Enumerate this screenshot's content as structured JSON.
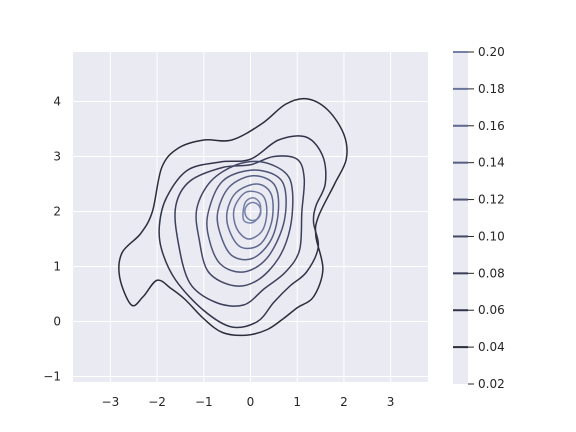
{
  "chart_data": {
    "type": "contour",
    "title": "",
    "xlabel": "",
    "ylabel": "",
    "xlim": [
      -3.8,
      3.8
    ],
    "ylim": [
      -1.1,
      4.9
    ],
    "xticks": [
      -3,
      -2,
      -1,
      0,
      1,
      2,
      3
    ],
    "yticks": [
      -1,
      0,
      1,
      2,
      3,
      4
    ],
    "grid": true,
    "background": "#eaeaf2",
    "peak": {
      "x": 0.05,
      "y": 2.0
    },
    "levels": [
      0.02,
      0.04,
      0.06,
      0.08,
      0.1,
      0.12,
      0.14,
      0.16,
      0.18,
      0.2
    ],
    "colorbar": {
      "ticks": [
        "0.02",
        "0.04",
        "0.06",
        "0.08",
        "0.10",
        "0.12",
        "0.14",
        "0.16",
        "0.18",
        "0.20"
      ],
      "colors": [
        "#f0f0f5",
        "#2b2d3a",
        "#32354a",
        "#3a3e58",
        "#434866",
        "#4d5374",
        "#565e82",
        "#60698f",
        "#6a749b",
        "#7580a6"
      ]
    },
    "contours": [
      {
        "level": 0.02,
        "color": "#2b2d3a",
        "points": [
          [
            -2.8,
            0.8
          ],
          [
            -2.55,
            0.3
          ],
          [
            -2.3,
            0.45
          ],
          [
            -2.0,
            0.75
          ],
          [
            -1.7,
            0.6
          ],
          [
            -1.4,
            0.4
          ],
          [
            -1.0,
            0.05
          ],
          [
            -0.6,
            -0.2
          ],
          [
            -0.1,
            -0.25
          ],
          [
            0.35,
            -0.15
          ],
          [
            0.7,
            0.05
          ],
          [
            1.0,
            0.25
          ],
          [
            1.35,
            0.45
          ],
          [
            1.55,
            0.95
          ],
          [
            1.4,
            1.55
          ],
          [
            1.45,
            1.9
          ],
          [
            1.8,
            2.5
          ],
          [
            2.05,
            2.95
          ],
          [
            2.0,
            3.4
          ],
          [
            1.65,
            3.85
          ],
          [
            1.2,
            4.05
          ],
          [
            0.75,
            3.95
          ],
          [
            0.25,
            3.6
          ],
          [
            -0.4,
            3.3
          ],
          [
            -1.0,
            3.3
          ],
          [
            -1.55,
            3.15
          ],
          [
            -1.9,
            2.8
          ],
          [
            -2.1,
            2.0
          ],
          [
            -2.35,
            1.6
          ],
          [
            -2.75,
            1.25
          ]
        ]
      },
      {
        "level": 0.04,
        "color": "#32354a",
        "points": [
          [
            -1.9,
            1.3
          ],
          [
            -1.6,
            0.75
          ],
          [
            -1.0,
            0.2
          ],
          [
            -0.4,
            -0.1
          ],
          [
            0.15,
            0.0
          ],
          [
            0.5,
            0.35
          ],
          [
            0.85,
            0.65
          ],
          [
            1.2,
            0.9
          ],
          [
            1.45,
            1.35
          ],
          [
            1.35,
            1.8
          ],
          [
            1.4,
            2.1
          ],
          [
            1.6,
            2.5
          ],
          [
            1.55,
            3.0
          ],
          [
            1.2,
            3.35
          ],
          [
            0.6,
            3.3
          ],
          [
            0.0,
            2.95
          ],
          [
            -0.65,
            2.9
          ],
          [
            -1.35,
            2.75
          ],
          [
            -1.8,
            2.25
          ],
          [
            -1.95,
            1.75
          ]
        ]
      },
      {
        "level": 0.06,
        "color": "#3a3e58",
        "points": [
          [
            -1.55,
            1.45
          ],
          [
            -1.3,
            0.7
          ],
          [
            -0.75,
            0.35
          ],
          [
            -0.15,
            0.3
          ],
          [
            0.3,
            0.6
          ],
          [
            0.75,
            0.9
          ],
          [
            1.05,
            1.3
          ],
          [
            1.1,
            2.0
          ],
          [
            1.15,
            2.6
          ],
          [
            1.0,
            2.95
          ],
          [
            0.5,
            3.0
          ],
          [
            0.0,
            2.85
          ],
          [
            -0.6,
            2.8
          ],
          [
            -1.3,
            2.55
          ],
          [
            -1.6,
            2.1
          ]
        ]
      },
      {
        "level": 0.08,
        "color": "#434866",
        "points": [
          [
            -1.1,
            1.5
          ],
          [
            -0.9,
            0.9
          ],
          [
            -0.35,
            0.65
          ],
          [
            0.15,
            0.75
          ],
          [
            0.6,
            1.15
          ],
          [
            0.85,
            1.7
          ],
          [
            0.9,
            2.35
          ],
          [
            0.75,
            2.7
          ],
          [
            0.25,
            2.9
          ],
          [
            -0.3,
            2.85
          ],
          [
            -0.85,
            2.55
          ],
          [
            -1.15,
            2.05
          ]
        ]
      },
      {
        "level": 0.1,
        "color": "#4d5374",
        "points": [
          [
            -0.9,
            1.55
          ],
          [
            -0.65,
            1.05
          ],
          [
            -0.15,
            0.9
          ],
          [
            0.35,
            1.15
          ],
          [
            0.7,
            1.75
          ],
          [
            0.75,
            2.35
          ],
          [
            0.55,
            2.65
          ],
          [
            0.0,
            2.75
          ],
          [
            -0.6,
            2.55
          ],
          [
            -0.9,
            2.0
          ]
        ]
      },
      {
        "level": 0.12,
        "color": "#565e82",
        "points": [
          [
            -0.65,
            1.6
          ],
          [
            -0.4,
            1.2
          ],
          [
            0.05,
            1.15
          ],
          [
            0.45,
            1.5
          ],
          [
            0.6,
            2.05
          ],
          [
            0.5,
            2.5
          ],
          [
            0.05,
            2.65
          ],
          [
            -0.45,
            2.45
          ],
          [
            -0.7,
            2.0
          ]
        ]
      },
      {
        "level": 0.14,
        "color": "#60698f",
        "points": [
          [
            -0.45,
            1.65
          ],
          [
            -0.2,
            1.35
          ],
          [
            0.2,
            1.4
          ],
          [
            0.45,
            1.8
          ],
          [
            0.45,
            2.3
          ],
          [
            0.15,
            2.5
          ],
          [
            -0.3,
            2.35
          ],
          [
            -0.5,
            2.0
          ]
        ]
      },
      {
        "level": 0.16,
        "color": "#6a749b",
        "points": [
          [
            -0.3,
            1.7
          ],
          [
            -0.05,
            1.5
          ],
          [
            0.25,
            1.65
          ],
          [
            0.35,
            2.0
          ],
          [
            0.25,
            2.3
          ],
          [
            -0.1,
            2.35
          ],
          [
            -0.35,
            2.05
          ]
        ]
      },
      {
        "level": 0.18,
        "color": "#7580a6",
        "points": [
          [
            -0.15,
            1.85
          ],
          [
            0.05,
            1.8
          ],
          [
            0.2,
            1.95
          ],
          [
            0.2,
            2.15
          ],
          [
            0.05,
            2.25
          ],
          [
            -0.12,
            2.15
          ]
        ]
      }
    ]
  }
}
